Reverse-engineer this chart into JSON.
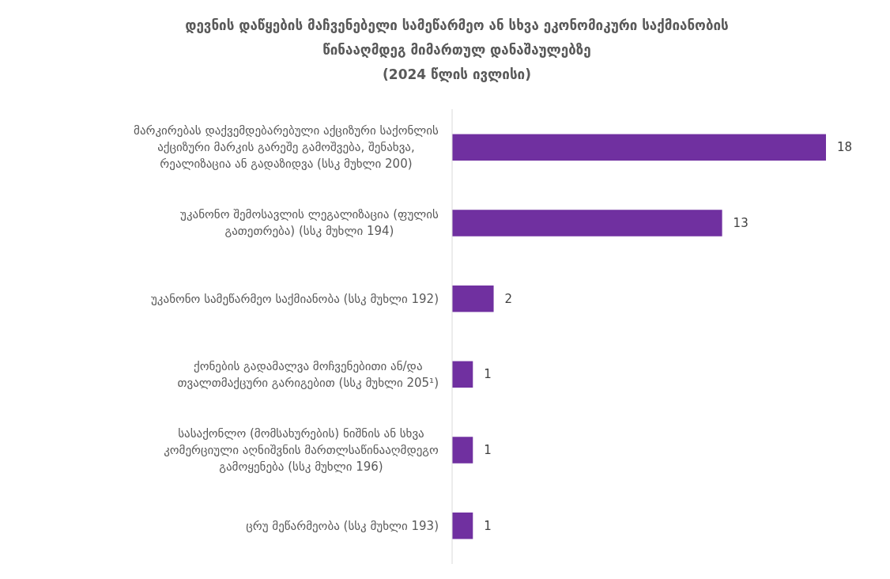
{
  "chart_data": {
    "type": "bar",
    "orientation": "horizontal",
    "title": "დევნის დაწყების მაჩვენებელი სამეწარმეო ან სხვა ეკონომიკური საქმიანობის\nწინააღმდეგ მიმართულ დანაშაულებზე\n(2024 წლის ივლისი)",
    "categories": [
      "მარკირებას დაქვემდებარებული აქციზური საქონლის\nაქციზური მარკის გარეშე გამოშვება, შენახვა,\nრეალიზაცია ან გადაზიდვა (სსკ  მუხლი 200)",
      "უკანონო შემოსავლის ლეგალიზაცია (ფულის\nგათეთრება) (სსკ მუხლი 194)",
      "უკანონო სამეწარმეო საქმიანობა (სსკ  მუხლი 192)",
      "ქონების გადამალვა მოჩვენებითი ან/და\nთვალთმაქცური გარიგებით (სსკ  მუხლი 205¹)",
      "სასაქონლო (მომსახურების) ნიშნის ან სხვა\nკომერციული აღნიშვნის მართლსაწინააღმდეგო\nგამოყენება (სსკ  მუხლი 196)",
      "ცრუ მეწარმეობა (სსკ  მუხლი 193)"
    ],
    "values": [
      18,
      13,
      2,
      1,
      1,
      1
    ],
    "color": "#7030a0",
    "data_labels": true
  }
}
